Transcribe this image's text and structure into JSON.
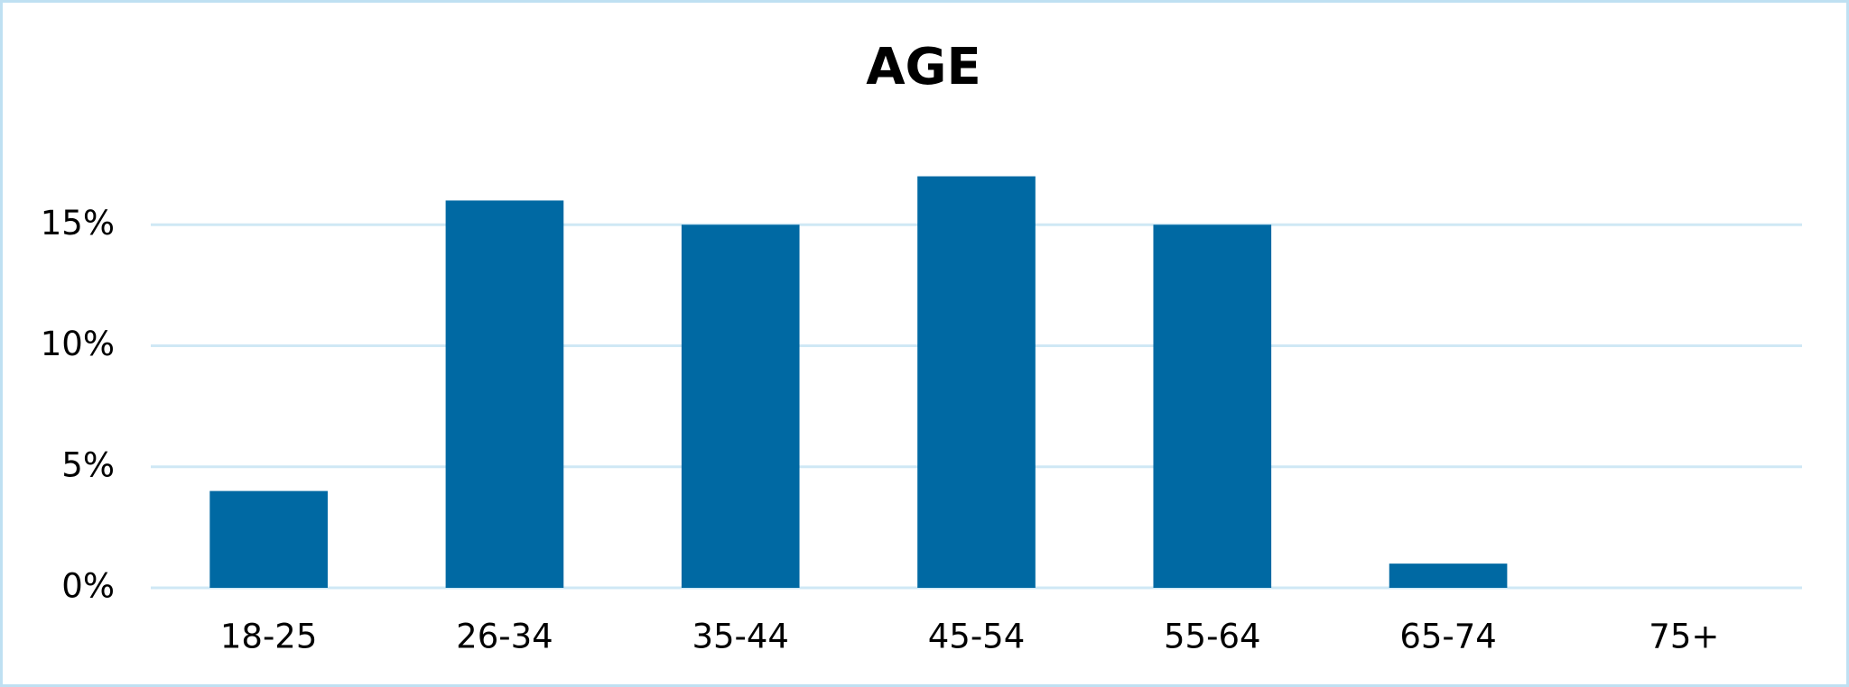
{
  "chart_data": {
    "type": "bar",
    "title": "AGE",
    "categories": [
      "18-25",
      "26-34",
      "35-44",
      "45-54",
      "55-64",
      "65-74",
      "75+"
    ],
    "values": [
      4,
      16,
      15,
      17,
      15,
      1,
      0
    ],
    "color": "#0069a3",
    "ylim": [
      0,
      20
    ],
    "yticks": [
      {
        "value": 0,
        "label": "0%"
      },
      {
        "value": 5,
        "label": "5%"
      },
      {
        "value": 10,
        "label": "10%"
      },
      {
        "value": 15,
        "label": "15%"
      }
    ],
    "grid": true
  }
}
